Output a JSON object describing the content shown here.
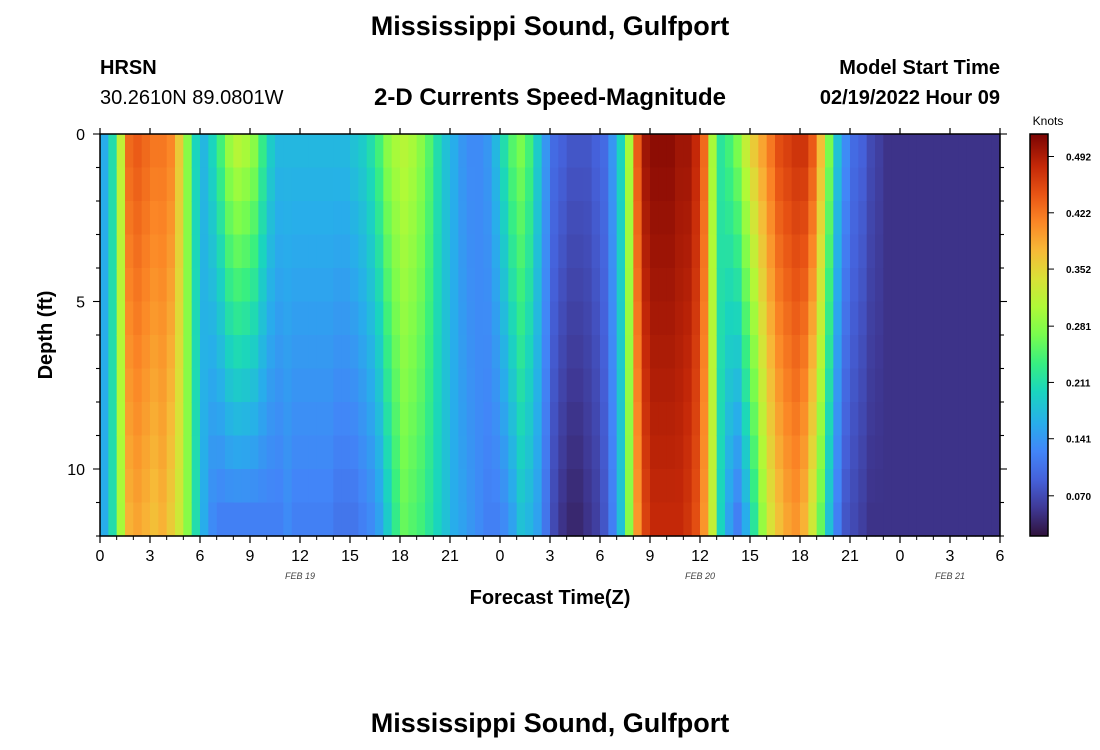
{
  "header": {
    "title": "Mississippi Sound, Gulfport",
    "station_id": "HRSN",
    "station_coords": "30.2610N  89.0801W",
    "model_start_label": "Model Start Time",
    "model_start_value": "02/19/2022 Hour 09",
    "bottom_title": "Mississippi Sound, Gulfport"
  },
  "chart_data": {
    "type": "heatmap",
    "title": "2-D Currents Speed-Magnitude",
    "xlabel": "Forecast Time(Z)",
    "ylabel": "Depth (ft)",
    "x_tick_labels": [
      "0",
      "3",
      "6",
      "9",
      "12",
      "15",
      "18",
      "21",
      "0",
      "3",
      "6",
      "9",
      "12",
      "15",
      "18",
      "21",
      "0",
      "3",
      "6"
    ],
    "date_labels": [
      {
        "label": "FEB 19",
        "hour": 12
      },
      {
        "label": "FEB 20",
        "hour": 36
      },
      {
        "label": "FEB 21",
        "hour": 51
      }
    ],
    "x_hours_range": [
      0,
      54
    ],
    "y_ticks": [
      0,
      5,
      10
    ],
    "ylim_ft": [
      0,
      12
    ],
    "colorbar": {
      "label": "Knots",
      "ticks": [
        "0.492",
        "0.422",
        "0.352",
        "0.281",
        "0.211",
        "0.141",
        "0.070"
      ],
      "range": [
        0.02,
        0.52
      ]
    },
    "surface_speed_knots": [
      0.16,
      0.21,
      0.32,
      0.43,
      0.44,
      0.43,
      0.42,
      0.42,
      0.41,
      0.36,
      0.28,
      0.2,
      0.17,
      0.2,
      0.24,
      0.29,
      0.31,
      0.3,
      0.28,
      0.23,
      0.19,
      0.17,
      0.17,
      0.17,
      0.17,
      0.17,
      0.17,
      0.17,
      0.17,
      0.17,
      0.18,
      0.19,
      0.21,
      0.24,
      0.28,
      0.3,
      0.31,
      0.3,
      0.28,
      0.25,
      0.21,
      0.18,
      0.16,
      0.14,
      0.13,
      0.13,
      0.14,
      0.17,
      0.21,
      0.25,
      0.27,
      0.24,
      0.19,
      0.14,
      0.1,
      0.09,
      0.08,
      0.08,
      0.08,
      0.09,
      0.1,
      0.14,
      0.2,
      0.3,
      0.44,
      0.5,
      0.51,
      0.51,
      0.51,
      0.5,
      0.5,
      0.48,
      0.43,
      0.3,
      0.22,
      0.24,
      0.27,
      0.32,
      0.36,
      0.39,
      0.42,
      0.45,
      0.46,
      0.47,
      0.47,
      0.44,
      0.37,
      0.27,
      0.18,
      0.13,
      0.1,
      0.09,
      0.07,
      0.06,
      0.05,
      0.05,
      0.05,
      0.05,
      0.05,
      0.05,
      0.05,
      0.05,
      0.05,
      0.05,
      0.05,
      0.05,
      0.05,
      0.05
    ],
    "bottom_speed_knots": [
      0.16,
      0.21,
      0.3,
      0.38,
      0.39,
      0.38,
      0.37,
      0.38,
      0.36,
      0.33,
      0.28,
      0.21,
      0.16,
      0.13,
      0.12,
      0.12,
      0.12,
      0.12,
      0.12,
      0.12,
      0.12,
      0.12,
      0.13,
      0.12,
      0.12,
      0.12,
      0.12,
      0.12,
      0.11,
      0.11,
      0.11,
      0.12,
      0.13,
      0.15,
      0.19,
      0.23,
      0.26,
      0.25,
      0.24,
      0.22,
      0.2,
      0.18,
      0.16,
      0.15,
      0.14,
      0.13,
      0.12,
      0.12,
      0.13,
      0.15,
      0.18,
      0.17,
      0.15,
      0.11,
      0.07,
      0.05,
      0.04,
      0.04,
      0.05,
      0.06,
      0.08,
      0.12,
      0.18,
      0.28,
      0.4,
      0.46,
      0.48,
      0.48,
      0.48,
      0.48,
      0.47,
      0.45,
      0.4,
      0.32,
      0.2,
      0.15,
      0.12,
      0.16,
      0.22,
      0.29,
      0.34,
      0.37,
      0.39,
      0.4,
      0.38,
      0.33,
      0.26,
      0.18,
      0.12,
      0.08,
      0.07,
      0.06,
      0.05,
      0.05,
      0.05,
      0.05,
      0.05,
      0.05,
      0.05,
      0.05,
      0.05,
      0.05,
      0.05,
      0.05,
      0.05,
      0.05,
      0.05,
      0.05
    ]
  }
}
